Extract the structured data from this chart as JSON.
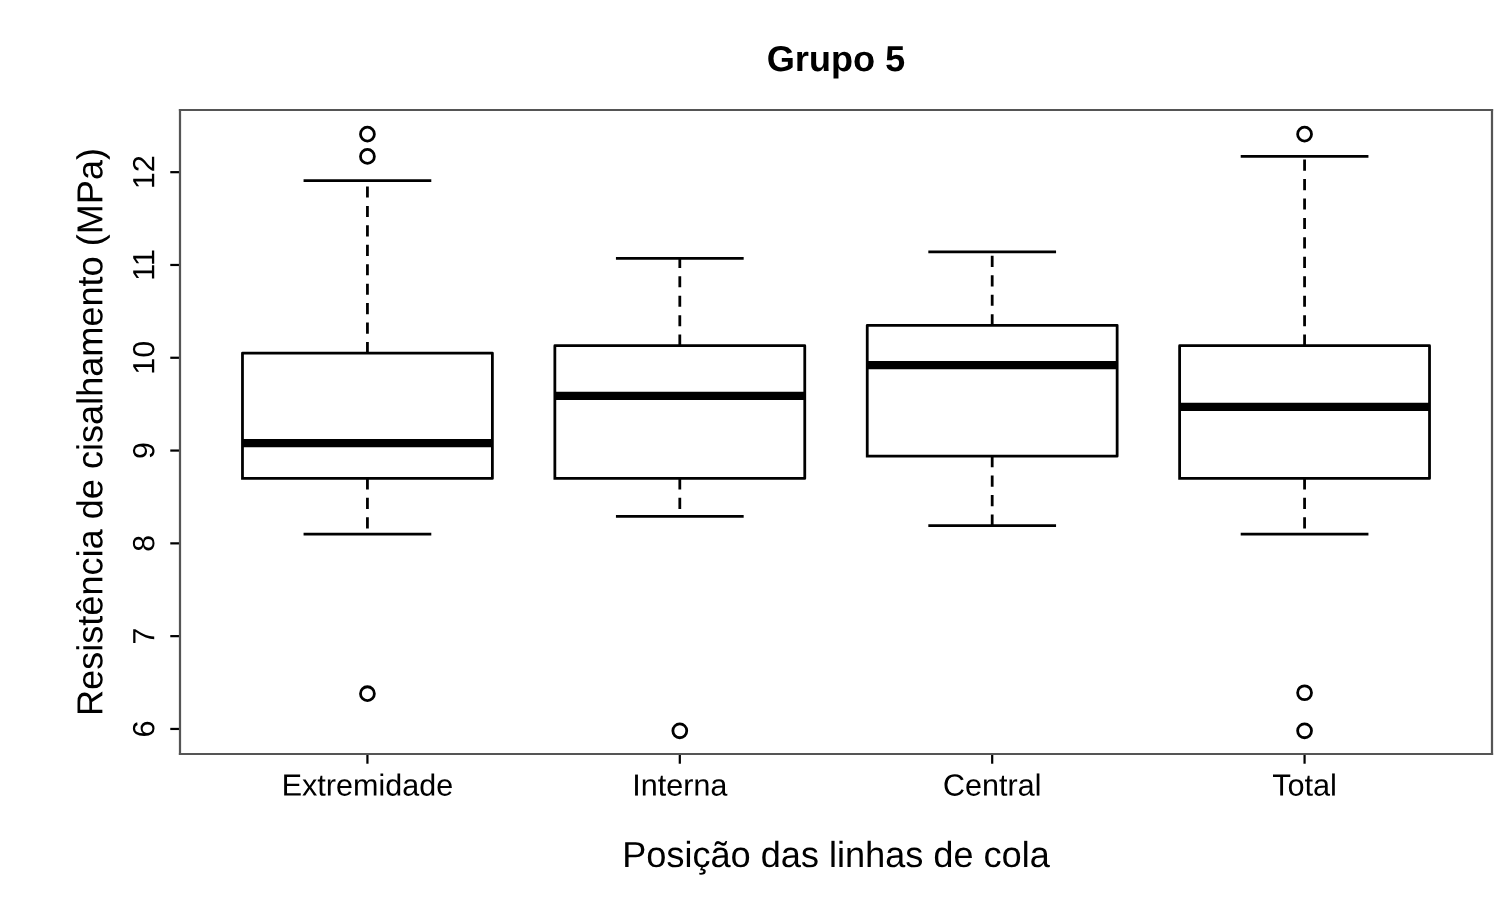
{
  "chart_data": {
    "type": "box",
    "title": "Grupo 5",
    "xlabel": "Posição das linhas de cola",
    "ylabel": "Resistência de cisalhamento (MPa)",
    "categories": [
      "Extremidade",
      "Interna",
      "Central",
      "Total"
    ],
    "boxes": [
      {
        "low": 8.1,
        "q1": 8.7,
        "median": 9.08,
        "q3": 10.05,
        "high": 11.91,
        "outliers": [
          12.41,
          12.17,
          6.38
        ]
      },
      {
        "low": 8.29,
        "q1": 8.7,
        "median": 9.59,
        "q3": 10.13,
        "high": 11.07,
        "outliers": [
          5.98
        ]
      },
      {
        "low": 8.19,
        "q1": 8.94,
        "median": 9.92,
        "q3": 10.35,
        "high": 11.14
      },
      {
        "low": 8.1,
        "q1": 8.7,
        "median": 9.47,
        "q3": 10.13,
        "high": 12.17,
        "outliers": [
          12.41,
          6.39,
          5.98
        ]
      }
    ],
    "ylim": [
      5.73,
      12.67
    ],
    "yticks": [
      6,
      7,
      8,
      9,
      10,
      11,
      12
    ],
    "grid": false,
    "line_style": "dashed"
  }
}
